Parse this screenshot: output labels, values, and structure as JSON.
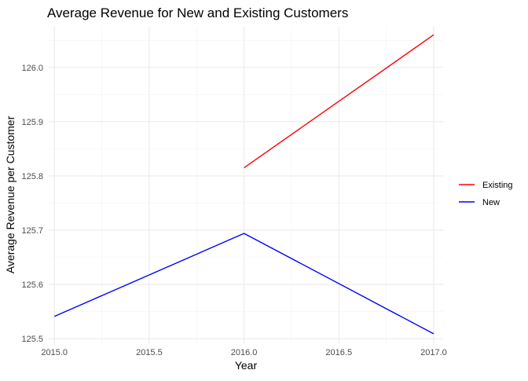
{
  "chart_data": {
    "type": "line",
    "title": "Average Revenue for New and Existing Customers",
    "xlabel": "Year",
    "ylabel": "Average Revenue per Customer",
    "xlim": [
      2014.97,
      2017.05
    ],
    "ylim": [
      125.49,
      126.075
    ],
    "x_ticks": [
      2015.0,
      2015.5,
      2016.0,
      2016.5,
      2017.0
    ],
    "x_tick_labels": [
      "2015.0",
      "2015.5",
      "2016.0",
      "2016.5",
      "2017.0"
    ],
    "y_ticks": [
      125.5,
      125.6,
      125.7,
      125.8,
      125.9,
      126.0
    ],
    "y_tick_labels": [
      "125.5",
      "125.6",
      "125.7",
      "125.8",
      "125.9",
      "126.0"
    ],
    "grid": true,
    "legend_position": "right",
    "series": [
      {
        "name": "Existing",
        "color": "#ff0000",
        "x": [
          2016,
          2017
        ],
        "y": [
          125.815,
          126.06
        ]
      },
      {
        "name": "New",
        "color": "#0000ff",
        "x": [
          2015,
          2016,
          2017
        ],
        "y": [
          125.541,
          125.694,
          125.509
        ]
      }
    ]
  }
}
